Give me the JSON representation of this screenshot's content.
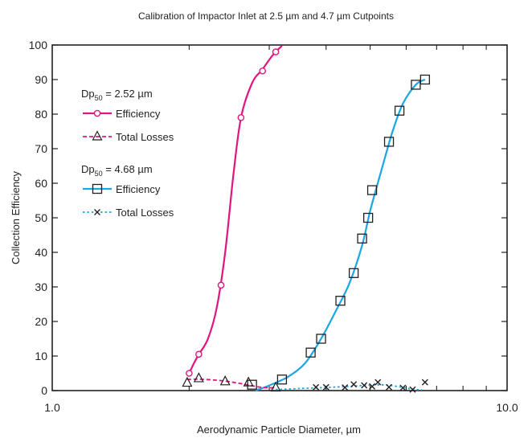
{
  "chart_data": {
    "type": "scatter",
    "title": "Calibration of Impactor Inlet at 2.5 µm and 4.7  µm Cutpoints",
    "xlabel": "Aerodynamic Particle Diameter, µm",
    "ylabel": "Collection Efficiency",
    "x_scale": "log",
    "xlim": [
      1.0,
      10.0
    ],
    "ylim": [
      0,
      100
    ],
    "x_tick_labels": [
      "1.0",
      "10.0"
    ],
    "x_tick_values": [
      1.0,
      10.0
    ],
    "y_ticks": [
      0,
      10,
      20,
      30,
      40,
      50,
      60,
      70,
      80,
      90,
      100
    ],
    "grid": false,
    "legend": {
      "placement": "top-left",
      "groups": [
        {
          "dp_main": "Dp",
          "dp_sub": "50",
          "dp_value": " = 2.52 µm"
        },
        {
          "dp_main": "Dp",
          "dp_sub": "50",
          "dp_value": " = 4.68 µm"
        }
      ]
    },
    "series": [
      {
        "name": "Efficiency",
        "group": 0,
        "color": "#e0157f",
        "marker": "circle",
        "line": "solid",
        "points": [
          [
            2.0,
            5
          ],
          [
            2.1,
            10.5
          ],
          [
            2.35,
            30.5
          ],
          [
            2.6,
            79
          ],
          [
            2.9,
            92.5
          ],
          [
            3.1,
            98
          ]
        ],
        "curve": [
          [
            2.0,
            5
          ],
          [
            2.05,
            8
          ],
          [
            2.1,
            10.5
          ],
          [
            2.2,
            15
          ],
          [
            2.3,
            24
          ],
          [
            2.4,
            40
          ],
          [
            2.5,
            62
          ],
          [
            2.6,
            79
          ],
          [
            2.75,
            89
          ],
          [
            2.9,
            93
          ],
          [
            3.05,
            97
          ],
          [
            3.2,
            99.8
          ]
        ]
      },
      {
        "name": "Total Losses",
        "group": 0,
        "color": "#e0157f",
        "marker": "triangle",
        "line": "dashed",
        "points": [
          [
            1.98,
            2.2
          ],
          [
            2.1,
            3.5
          ],
          [
            2.4,
            2.6
          ],
          [
            2.7,
            2.3
          ],
          [
            3.1,
            0.8
          ]
        ],
        "curve": [
          [
            1.98,
            3.2
          ],
          [
            2.1,
            3.3
          ],
          [
            2.3,
            3.0
          ],
          [
            2.5,
            2.4
          ],
          [
            2.7,
            1.6
          ],
          [
            2.9,
            0.9
          ],
          [
            3.1,
            0.8
          ]
        ]
      },
      {
        "name": "Efficiency",
        "group": 1,
        "color": "#1aa7e1",
        "marker": "square",
        "line": "solid",
        "points": [
          [
            2.75,
            1.7
          ],
          [
            3.2,
            3.2
          ],
          [
            3.7,
            11
          ],
          [
            3.9,
            15
          ],
          [
            4.3,
            26
          ],
          [
            4.6,
            34
          ],
          [
            4.8,
            44
          ],
          [
            4.95,
            50
          ],
          [
            5.05,
            58
          ],
          [
            5.5,
            72
          ],
          [
            5.8,
            81
          ],
          [
            6.3,
            88.5
          ],
          [
            6.6,
            90
          ]
        ],
        "curve": [
          [
            2.8,
            0
          ],
          [
            3.0,
            1.5
          ],
          [
            3.3,
            4
          ],
          [
            3.6,
            8
          ],
          [
            3.9,
            15
          ],
          [
            4.2,
            23
          ],
          [
            4.5,
            31
          ],
          [
            4.8,
            42
          ],
          [
            5.0,
            52
          ],
          [
            5.3,
            64
          ],
          [
            5.6,
            75
          ],
          [
            5.9,
            83
          ],
          [
            6.3,
            88.5
          ],
          [
            6.6,
            90
          ]
        ]
      },
      {
        "name": "Total Losses",
        "group": 1,
        "color": "#1aa7e1",
        "marker": "x",
        "line": "dotted",
        "points": [
          [
            3.8,
            1.0
          ],
          [
            4.0,
            1.0
          ],
          [
            4.4,
            0.9
          ],
          [
            4.6,
            1.8
          ],
          [
            4.85,
            1.5
          ],
          [
            5.05,
            1.2
          ],
          [
            5.2,
            2.4
          ],
          [
            5.5,
            1.0
          ],
          [
            5.9,
            0.8
          ],
          [
            6.2,
            0.3
          ],
          [
            6.6,
            2.4
          ]
        ],
        "curve": [
          [
            3.1,
            0.3
          ],
          [
            3.5,
            0.6
          ],
          [
            4.0,
            0.9
          ],
          [
            4.5,
            1.2
          ],
          [
            5.0,
            1.6
          ],
          [
            5.4,
            1.6
          ],
          [
            5.8,
            1.1
          ],
          [
            6.2,
            0.4
          ],
          [
            6.5,
            0.2
          ]
        ]
      }
    ]
  }
}
